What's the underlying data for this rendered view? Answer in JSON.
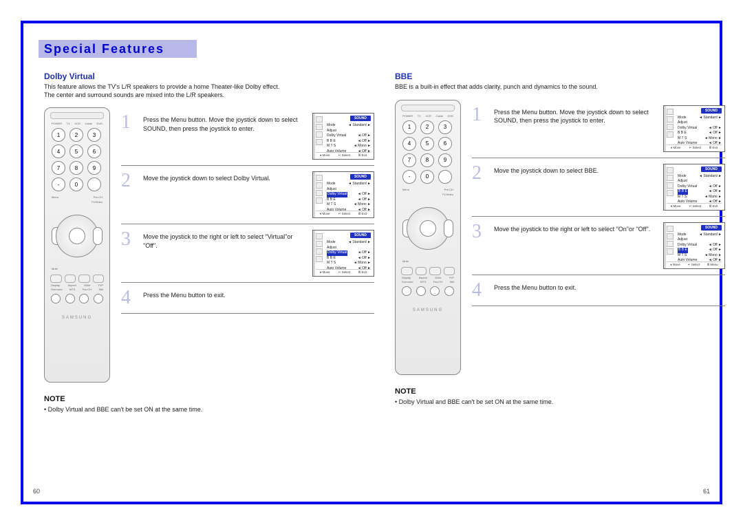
{
  "header": {
    "title": "Special Features"
  },
  "colors": {
    "frame": "#0000ee",
    "accent": "#2030b0",
    "stepnum": "#bcbce0",
    "osd_title_bg": "#2030c0"
  },
  "remote": {
    "top_labels": [
      "POWER",
      "TV",
      "VCR",
      "Cable",
      "DVD"
    ],
    "numpad": [
      "1",
      "2",
      "3",
      "4",
      "5",
      "6",
      "7",
      "8",
      "9",
      "-",
      "0",
      ""
    ],
    "mid_left": "Menu",
    "mid_right_top": "Pre-CH",
    "mid_right_bot": "TV/Video",
    "mute": "Mute",
    "row1_labels": [
      "Display",
      "Aspect",
      "DNIe",
      "P.IP"
    ],
    "row2_labels": [
      "Surround",
      "MTS",
      "Fav.CH",
      "Still"
    ],
    "brand": "SAMSUNG"
  },
  "osd_common": {
    "title": "SOUND",
    "rows": [
      {
        "l": "Mode",
        "r": "◄ Standard ►"
      },
      {
        "l": "Adjust",
        "r": ""
      },
      {
        "l": "Dolby Virtual",
        "r": "◄  Off  ►"
      },
      {
        "l": "B B E",
        "r": "◄  Off  ►"
      },
      {
        "l": "M T S",
        "r": "◄  Mono  ►"
      },
      {
        "l": "Auto Volume",
        "r": "◄  Off  ►"
      }
    ]
  },
  "osd_footers": {
    "std": [
      "♦ Move",
      "↵ Select",
      "Ⅲ Exit"
    ],
    "menu": [
      "♦ Move",
      "↵ Select",
      "Ⅲ Menu"
    ]
  },
  "left_page": {
    "title": "Dolby Virtual",
    "desc": "This feature allows the TV's L/R speakers to provide a home Theater-like Dolby effect.\nThe center and surround sounds are mixed into the L/R speakers.",
    "steps": [
      {
        "n": "1",
        "text": "Press the Menu button. Move the joystick down to select SOUND, then press the joystick to enter.",
        "screen": true,
        "hl": null,
        "footer": "std"
      },
      {
        "n": "2",
        "text": "Move the joystick down to select Dolby Virtual.",
        "screen": true,
        "hl": "Dolby Virtual",
        "footer": "std"
      },
      {
        "n": "3",
        "text": "Move the joystick to the right or left to select \"Virtual\"or \"Off\".",
        "screen": true,
        "hl": "Dolby Virtual",
        "footer": "std"
      },
      {
        "n": "4",
        "text": "Press the Menu button to exit.",
        "screen": false
      }
    ],
    "note_title": "NOTE",
    "note_body": "•  Dolby Virtual and BBE can't be set ON at the same time.",
    "page_num": "60"
  },
  "right_page": {
    "title": "BBE",
    "desc": "BBE is a built-in effect that adds clarity, punch and dynamics to the sound.",
    "steps": [
      {
        "n": "1",
        "text": "Press the Menu button. Move the joystick down to select SOUND, then press the joystick to enter.",
        "screen": true,
        "hl": null,
        "footer": "std"
      },
      {
        "n": "2",
        "text": "Move the joystick down to select BBE.",
        "screen": true,
        "hl": "B B E",
        "footer": "std"
      },
      {
        "n": "3",
        "text": "Move the joystick to the right or left to select \"On\"or \"Off\".",
        "screen": true,
        "hl": "B B E",
        "footer": "menu"
      },
      {
        "n": "4",
        "text": "Press the Menu button to exit.",
        "screen": false
      }
    ],
    "note_title": "NOTE",
    "note_body": "•  Dolby Virtual and BBE can't be set ON at the same time.",
    "page_num": "61"
  }
}
